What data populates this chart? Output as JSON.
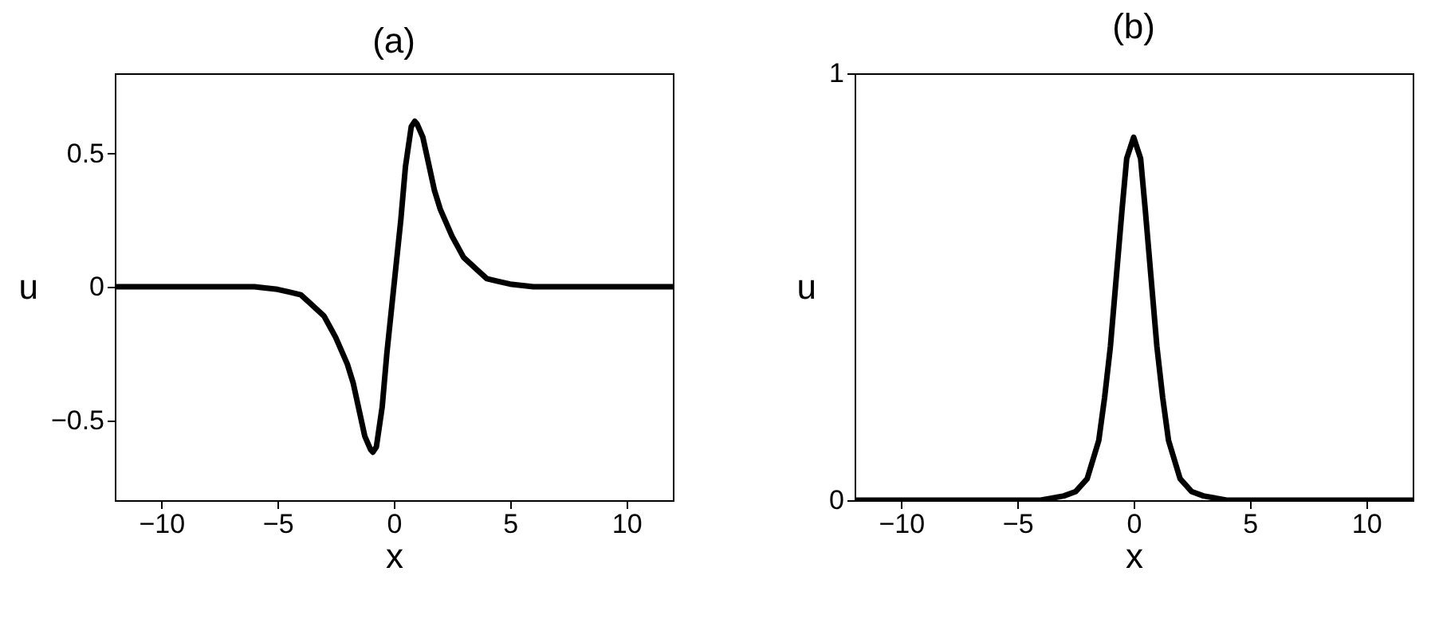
{
  "chart_data": [
    {
      "type": "line",
      "title": "(a)",
      "xlabel": "x",
      "ylabel": "u",
      "xlim": [
        -12,
        12
      ],
      "xticks": [
        -10,
        -5,
        0,
        5,
        10
      ],
      "ylim": [
        -0.8,
        0.8
      ],
      "yticks": [
        -0.5,
        0,
        0.5
      ],
      "grid": false,
      "marker": "none",
      "line_style": "solid",
      "series": [
        {
          "color": "#000000",
          "x": [
            -12,
            -10,
            -8,
            -6,
            -5,
            -4.5,
            -4,
            -3.5,
            -3,
            -2.75,
            -2.5,
            -2,
            -1.75,
            -1.5,
            -1.25,
            -1,
            -0.9,
            -0.75,
            -0.5,
            -0.3,
            0,
            0.3,
            0.5,
            0.75,
            0.9,
            1,
            1.25,
            1.5,
            1.75,
            2,
            2.5,
            3,
            3.5,
            4,
            4.5,
            5,
            6,
            8,
            10,
            12
          ],
          "values": [
            0,
            0,
            0,
            0,
            -0.01,
            -0.02,
            -0.03,
            -0.07,
            -0.11,
            -0.15,
            -0.19,
            -0.29,
            -0.36,
            -0.46,
            -0.56,
            -0.61,
            -0.62,
            -0.6,
            -0.45,
            -0.25,
            0,
            0.25,
            0.45,
            0.6,
            0.62,
            0.61,
            0.56,
            0.46,
            0.36,
            0.29,
            0.19,
            0.11,
            0.07,
            0.03,
            0.02,
            0.01,
            0,
            0,
            0,
            0
          ]
        }
      ]
    },
    {
      "type": "line",
      "title": "(b)",
      "xlabel": "x",
      "ylabel": "u",
      "xlim": [
        -12,
        12
      ],
      "xticks": [
        -10,
        -5,
        0,
        5,
        10
      ],
      "ylim": [
        0,
        1
      ],
      "yticks": [
        0,
        1
      ],
      "grid": false,
      "marker": "none",
      "line_style": "solid",
      "series": [
        {
          "color": "#000000",
          "x": [
            -12,
            -10,
            -8,
            -6,
            -4,
            -3,
            -2.5,
            -2,
            -1.5,
            -1.25,
            -1,
            -0.75,
            -0.5,
            -0.3,
            0,
            0.3,
            0.5,
            0.75,
            1,
            1.25,
            1.5,
            2,
            2.5,
            3,
            4,
            6,
            8,
            10,
            12
          ],
          "values": [
            0,
            0,
            0,
            0,
            0,
            0.01,
            0.02,
            0.05,
            0.14,
            0.24,
            0.36,
            0.52,
            0.68,
            0.8,
            0.85,
            0.8,
            0.68,
            0.52,
            0.36,
            0.24,
            0.14,
            0.05,
            0.02,
            0.01,
            0,
            0,
            0,
            0,
            0
          ]
        }
      ]
    }
  ]
}
